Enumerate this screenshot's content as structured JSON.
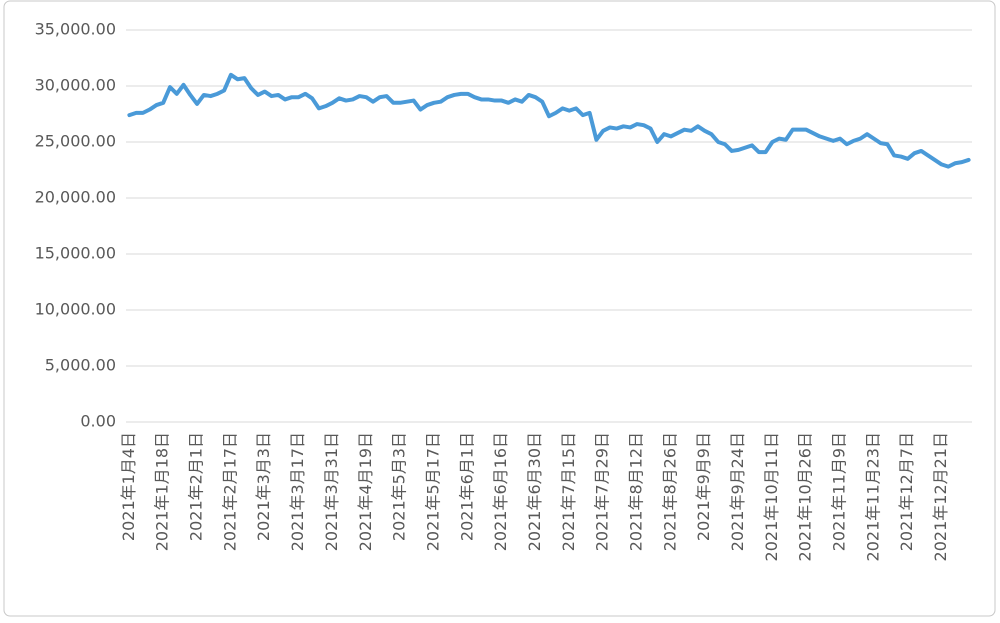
{
  "chart_data": {
    "type": "line",
    "categories": [
      "2021年1月4日",
      null,
      null,
      null,
      null,
      "2021年1月18日",
      null,
      null,
      null,
      null,
      "2021年2月1日",
      null,
      null,
      null,
      null,
      "2021年2月17日",
      null,
      null,
      null,
      null,
      "2021年3月3日",
      null,
      null,
      null,
      null,
      "2021年3月17日",
      null,
      null,
      null,
      null,
      "2021年3月31日",
      null,
      null,
      null,
      null,
      "2021年4月19日",
      null,
      null,
      null,
      null,
      "2021年5月3日",
      null,
      null,
      null,
      null,
      "2021年5月17日",
      null,
      null,
      null,
      null,
      "2021年6月1日",
      null,
      null,
      null,
      null,
      "2021年6月16日",
      null,
      null,
      null,
      null,
      "2021年6月30日",
      null,
      null,
      null,
      null,
      "2021年7月15日",
      null,
      null,
      null,
      null,
      "2021年7月29日",
      null,
      null,
      null,
      null,
      "2021年8月12日",
      null,
      null,
      null,
      null,
      "2021年8月26日",
      null,
      null,
      null,
      null,
      "2021年9月9日",
      null,
      null,
      null,
      null,
      "2021年9月24日",
      null,
      null,
      null,
      null,
      "2021年10月11日",
      null,
      null,
      null,
      null,
      "2021年10月26日",
      null,
      null,
      null,
      null,
      "2021年11月9日",
      null,
      null,
      null,
      null,
      "2021年11月23日",
      null,
      null,
      null,
      null,
      "2021年12月7日",
      null,
      null,
      null,
      null,
      "2021年12月21日",
      null,
      null,
      null,
      null
    ],
    "values": [
      27400,
      27600,
      27600,
      27900,
      28300,
      28500,
      29900,
      29300,
      30100,
      29200,
      28400,
      29200,
      29100,
      29300,
      29600,
      31000,
      30600,
      30700,
      29800,
      29200,
      29500,
      29100,
      29200,
      28800,
      29000,
      29000,
      29300,
      28900,
      28000,
      28200,
      28500,
      28900,
      28700,
      28800,
      29100,
      29000,
      28600,
      29000,
      29100,
      28500,
      28500,
      28600,
      28700,
      27900,
      28300,
      28500,
      28600,
      29000,
      29200,
      29300,
      29300,
      29000,
      28800,
      28800,
      28700,
      28700,
      28500,
      28800,
      28600,
      29200,
      29000,
      28600,
      27300,
      27600,
      28000,
      27800,
      28000,
      27400,
      27600,
      25200,
      26000,
      26300,
      26200,
      26400,
      26300,
      26600,
      26500,
      26200,
      25000,
      25700,
      25500,
      25800,
      26100,
      26000,
      26400,
      26000,
      25700,
      25000,
      24800,
      24200,
      24300,
      24500,
      24700,
      24100,
      24100,
      25000,
      25300,
      25200,
      26100,
      26100,
      26100,
      25800,
      25500,
      25300,
      25100,
      25300,
      24800,
      25100,
      25300,
      25700,
      25300,
      24900,
      24800,
      23800,
      23700,
      23500,
      24000,
      24200,
      23800,
      23400,
      23000,
      22800,
      23100,
      23200,
      23400
    ],
    "color": "#4a9ad8",
    "ylim": [
      0,
      35000
    ],
    "yticks": [
      {
        "value": 0,
        "label": "0.00"
      },
      {
        "value": 5000,
        "label": "5,000.00"
      },
      {
        "value": 10000,
        "label": "10,000.00"
      },
      {
        "value": 15000,
        "label": "15,000.00"
      },
      {
        "value": 20000,
        "label": "20,000.00"
      },
      {
        "value": 25000,
        "label": "25,000.00"
      },
      {
        "value": 30000,
        "label": "30,000.00"
      },
      {
        "value": 35000,
        "label": "35,000.00"
      }
    ],
    "grid": true
  }
}
